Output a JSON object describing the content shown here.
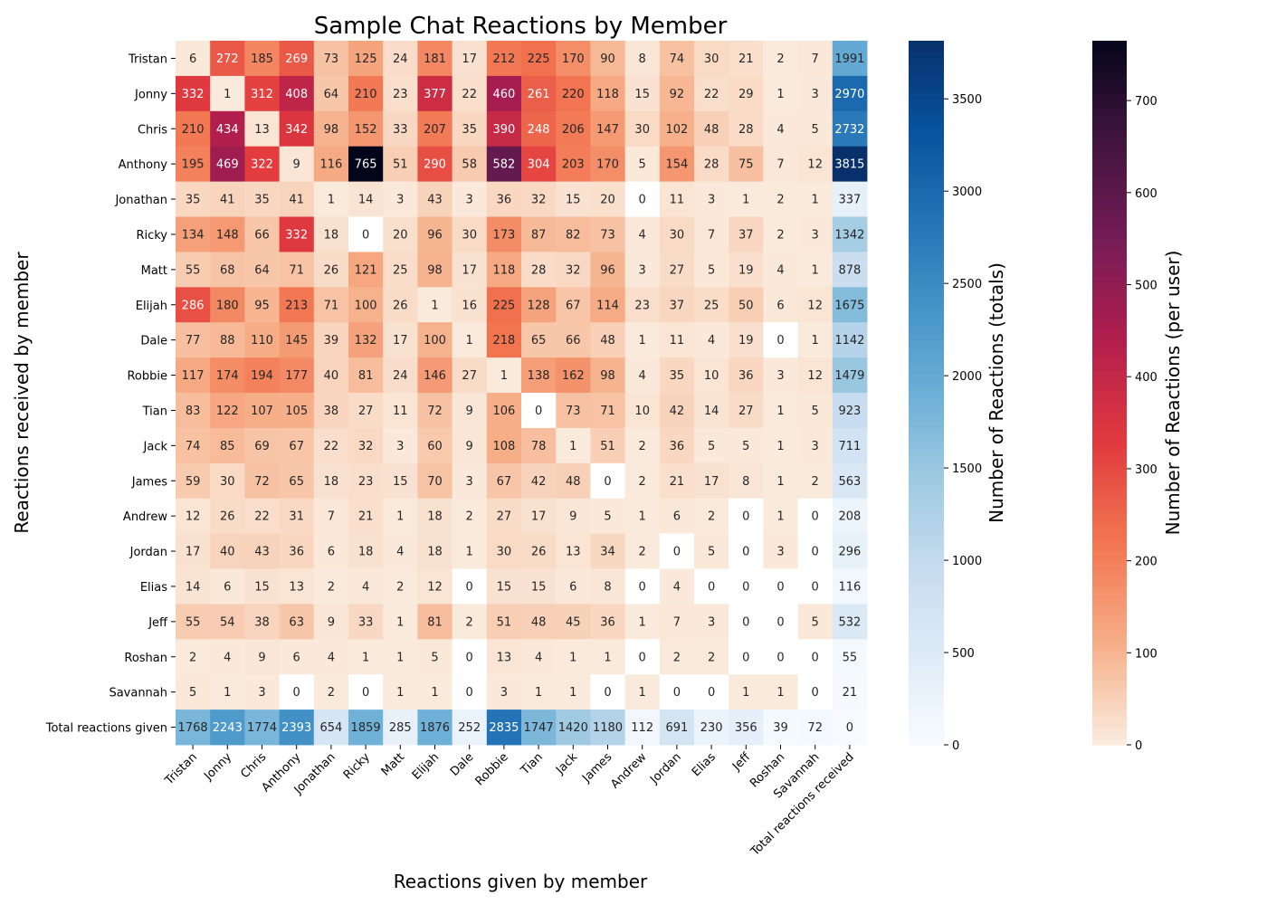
{
  "chart_data": {
    "type": "heatmap",
    "title": "Sample Chat Reactions by Member",
    "xlabel": "Reactions given by member",
    "ylabel": "Reactions received by member",
    "x_categories": [
      "Tristan",
      "Jonny",
      "Chris",
      "Anthony",
      "Jonathan",
      "Ricky",
      "Matt",
      "Elijah",
      "Dale",
      "Robbie",
      "Tian",
      "Jack",
      "James",
      "Andrew",
      "Jordan",
      "Elias",
      "Jeff",
      "Roshan",
      "Savannah",
      "Total reactions received"
    ],
    "y_categories": [
      "Tristan",
      "Jonny",
      "Chris",
      "Anthony",
      "Jonathan",
      "Ricky",
      "Matt",
      "Elijah",
      "Dale",
      "Robbie",
      "Tian",
      "Jack",
      "James",
      "Andrew",
      "Jordan",
      "Elias",
      "Jeff",
      "Roshan",
      "Savannah",
      "Total reactions given"
    ],
    "values": [
      [
        6,
        272,
        185,
        269,
        73,
        125,
        24,
        181,
        17,
        212,
        225,
        170,
        90,
        8,
        74,
        30,
        21,
        2,
        7,
        1991
      ],
      [
        332,
        1,
        312,
        408,
        64,
        210,
        23,
        377,
        22,
        460,
        261,
        220,
        118,
        15,
        92,
        22,
        29,
        1,
        3,
        2970
      ],
      [
        210,
        434,
        13,
        342,
        98,
        152,
        33,
        207,
        35,
        390,
        248,
        206,
        147,
        30,
        102,
        48,
        28,
        4,
        5,
        2732
      ],
      [
        195,
        469,
        322,
        9,
        116,
        765,
        51,
        290,
        58,
        582,
        304,
        203,
        170,
        5,
        154,
        28,
        75,
        7,
        12,
        3815
      ],
      [
        35,
        41,
        35,
        41,
        1,
        14,
        3,
        43,
        3,
        36,
        32,
        15,
        20,
        0,
        11,
        3,
        1,
        2,
        1,
        337
      ],
      [
        134,
        148,
        66,
        332,
        18,
        0,
        20,
        96,
        30,
        173,
        87,
        82,
        73,
        4,
        30,
        7,
        37,
        2,
        3,
        1342
      ],
      [
        55,
        68,
        64,
        71,
        26,
        121,
        25,
        98,
        17,
        118,
        28,
        32,
        96,
        3,
        27,
        5,
        19,
        4,
        1,
        878
      ],
      [
        286,
        180,
        95,
        213,
        71,
        100,
        26,
        1,
        16,
        225,
        128,
        67,
        114,
        23,
        37,
        25,
        50,
        6,
        12,
        1675
      ],
      [
        77,
        88,
        110,
        145,
        39,
        132,
        17,
        100,
        1,
        218,
        65,
        66,
        48,
        1,
        11,
        4,
        19,
        0,
        1,
        1142
      ],
      [
        117,
        174,
        194,
        177,
        40,
        81,
        24,
        146,
        27,
        1,
        138,
        162,
        98,
        4,
        35,
        10,
        36,
        3,
        12,
        1479
      ],
      [
        83,
        122,
        107,
        105,
        38,
        27,
        11,
        72,
        9,
        106,
        0,
        73,
        71,
        10,
        42,
        14,
        27,
        1,
        5,
        923
      ],
      [
        74,
        85,
        69,
        67,
        22,
        32,
        3,
        60,
        9,
        108,
        78,
        1,
        51,
        2,
        36,
        5,
        5,
        1,
        3,
        711
      ],
      [
        59,
        30,
        72,
        65,
        18,
        23,
        15,
        70,
        3,
        67,
        42,
        48,
        0,
        2,
        21,
        17,
        8,
        1,
        2,
        563
      ],
      [
        12,
        26,
        22,
        31,
        7,
        21,
        1,
        18,
        2,
        27,
        17,
        9,
        5,
        1,
        6,
        2,
        0,
        1,
        0,
        208
      ],
      [
        17,
        40,
        43,
        36,
        6,
        18,
        4,
        18,
        1,
        30,
        26,
        13,
        34,
        2,
        0,
        5,
        0,
        3,
        0,
        296
      ],
      [
        14,
        6,
        15,
        13,
        2,
        4,
        2,
        12,
        0,
        15,
        15,
        6,
        8,
        0,
        4,
        0,
        0,
        0,
        0,
        116
      ],
      [
        55,
        54,
        38,
        63,
        9,
        33,
        1,
        81,
        2,
        51,
        48,
        45,
        36,
        1,
        7,
        3,
        0,
        0,
        5,
        532
      ],
      [
        2,
        4,
        9,
        6,
        4,
        1,
        1,
        5,
        0,
        13,
        4,
        1,
        1,
        0,
        2,
        2,
        0,
        0,
        0,
        55
      ],
      [
        5,
        1,
        3,
        0,
        2,
        0,
        1,
        1,
        0,
        3,
        1,
        1,
        0,
        1,
        0,
        0,
        1,
        1,
        0,
        21
      ],
      [
        1768,
        2243,
        1774,
        2393,
        654,
        1859,
        285,
        1876,
        252,
        2835,
        1747,
        1420,
        1180,
        112,
        691,
        230,
        356,
        39,
        72,
        0
      ]
    ],
    "zero_cells_masked_user": "zero cells in the per-user block are drawn white",
    "colorbars": [
      {
        "name": "totals",
        "label": "Number of Reactions (totals)",
        "colormap": "Blues",
        "range": [
          0,
          3815
        ],
        "ticks": [
          0,
          500,
          1000,
          1500,
          2000,
          2500,
          3000,
          3500
        ]
      },
      {
        "name": "per-user",
        "label": "Number of Reactions (per user)",
        "colormap": "rocket_r",
        "range": [
          0,
          765
        ],
        "ticks": [
          0,
          100,
          200,
          300,
          400,
          500,
          600,
          700
        ]
      }
    ]
  }
}
